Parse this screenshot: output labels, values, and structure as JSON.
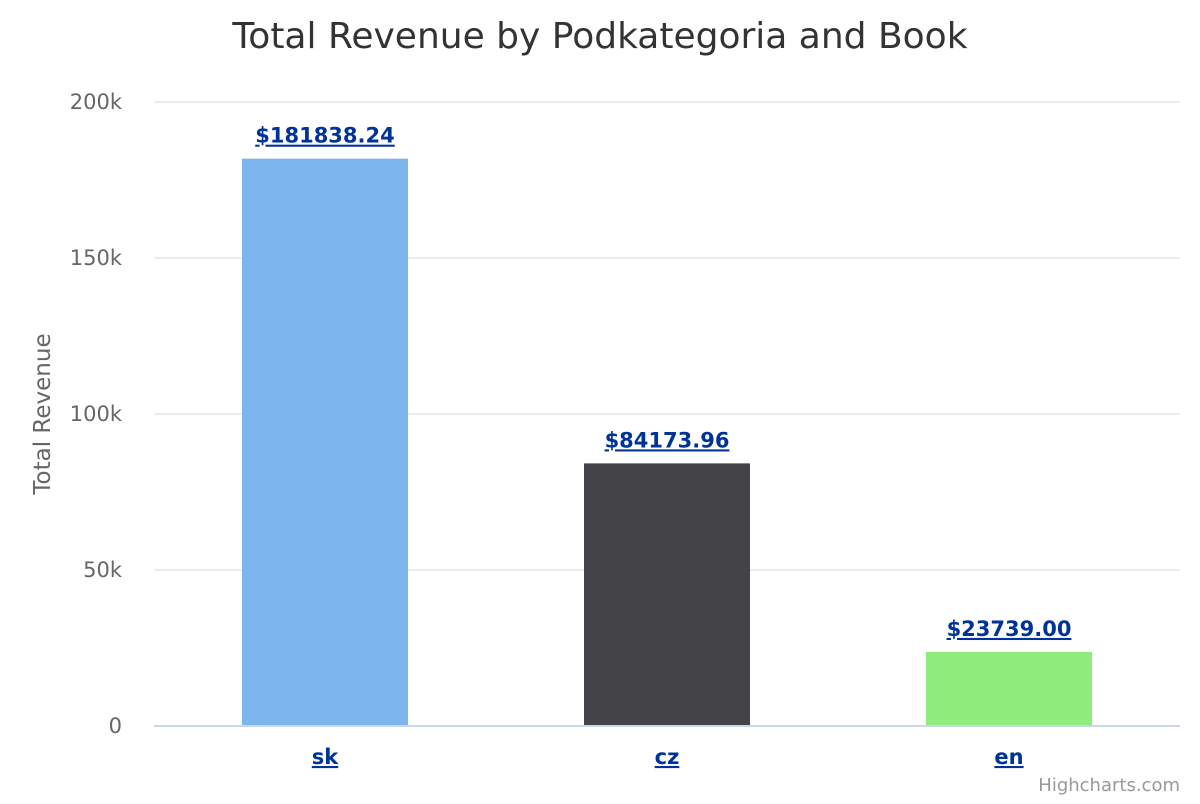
{
  "chart_data": {
    "type": "bar",
    "title": "Total Revenue by Podkategoria and Book",
    "xlabel": "",
    "ylabel": "Total Revenue",
    "categories": [
      "sk",
      "cz",
      "en"
    ],
    "values": [
      181838.24,
      84173.96,
      23739.0
    ],
    "data_labels": [
      "$181838.24",
      "$84173.96",
      "$23739.00"
    ],
    "colors": [
      "#7cb5ec",
      "#434348",
      "#90ed7d"
    ],
    "ylim": [
      0,
      200000
    ],
    "yticks": [
      0,
      50000,
      100000,
      150000,
      200000
    ],
    "ytick_labels": [
      "0",
      "50k",
      "100k",
      "150k",
      "200k"
    ],
    "grid": true,
    "legend": "none"
  },
  "credits": "Highcharts.com"
}
